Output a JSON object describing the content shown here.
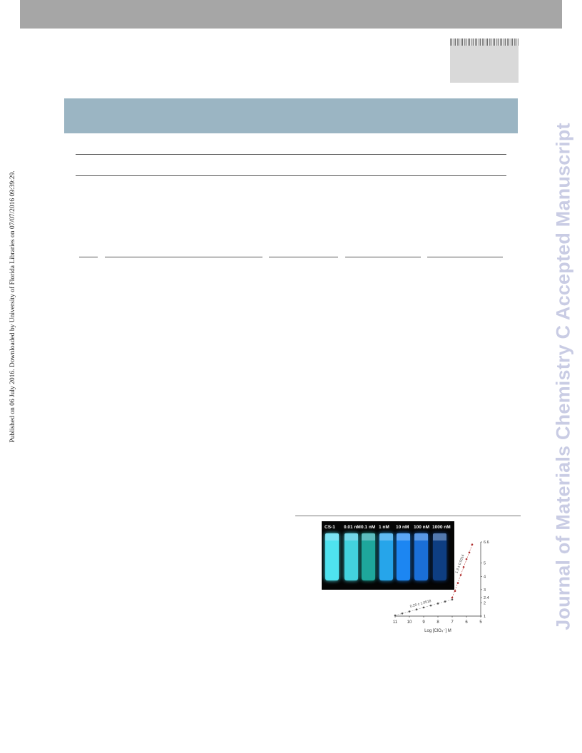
{
  "side_text": "Published on 06 July 2016. Downloaded by University of Florida Libraries on 07/07/2016 09:39:29.",
  "watermark": "Journal of Materials Chemistry C Accepted Manuscript",
  "figure": {
    "vial_labels": [
      "CS-1",
      "0.01 nM",
      "0.1 nM",
      "1 nM",
      "10 nM",
      "100 nM",
      "1000 nM"
    ],
    "vial_colors": [
      "#4fe3ef",
      "#43d2de",
      "#1ea79c",
      "#26a5ea",
      "#1c86f2",
      "#1a6fd8",
      "#0e3e82"
    ]
  },
  "chart_data": {
    "type": "scatter",
    "xlabel": "Log [ClO₄⁻] M",
    "x_ticks": [
      "11",
      "10",
      "9",
      "8",
      "7",
      "6",
      "5"
    ],
    "y_ticks": [
      "1",
      "2",
      "2.4",
      "3",
      "4",
      "5",
      "6.6"
    ],
    "xlim": [
      11,
      5
    ],
    "ylim": [
      1,
      6.6
    ],
    "series": [
      {
        "label": "0.26 ± 1.0518",
        "x": [
          11,
          10.5,
          10,
          9.5,
          9,
          8.5,
          8,
          7.5,
          7
        ],
        "y": [
          1.05,
          1.2,
          1.35,
          1.5,
          1.65,
          1.8,
          1.95,
          2.1,
          2.25
        ]
      },
      {
        "label": "1.3 ± 0.5014",
        "x": [
          7,
          6.8,
          6.6,
          6.4,
          6.2,
          6,
          5.8,
          5.6
        ],
        "y": [
          2.4,
          2.9,
          3.5,
          4.1,
          4.7,
          5.3,
          5.8,
          6.4
        ]
      }
    ]
  }
}
